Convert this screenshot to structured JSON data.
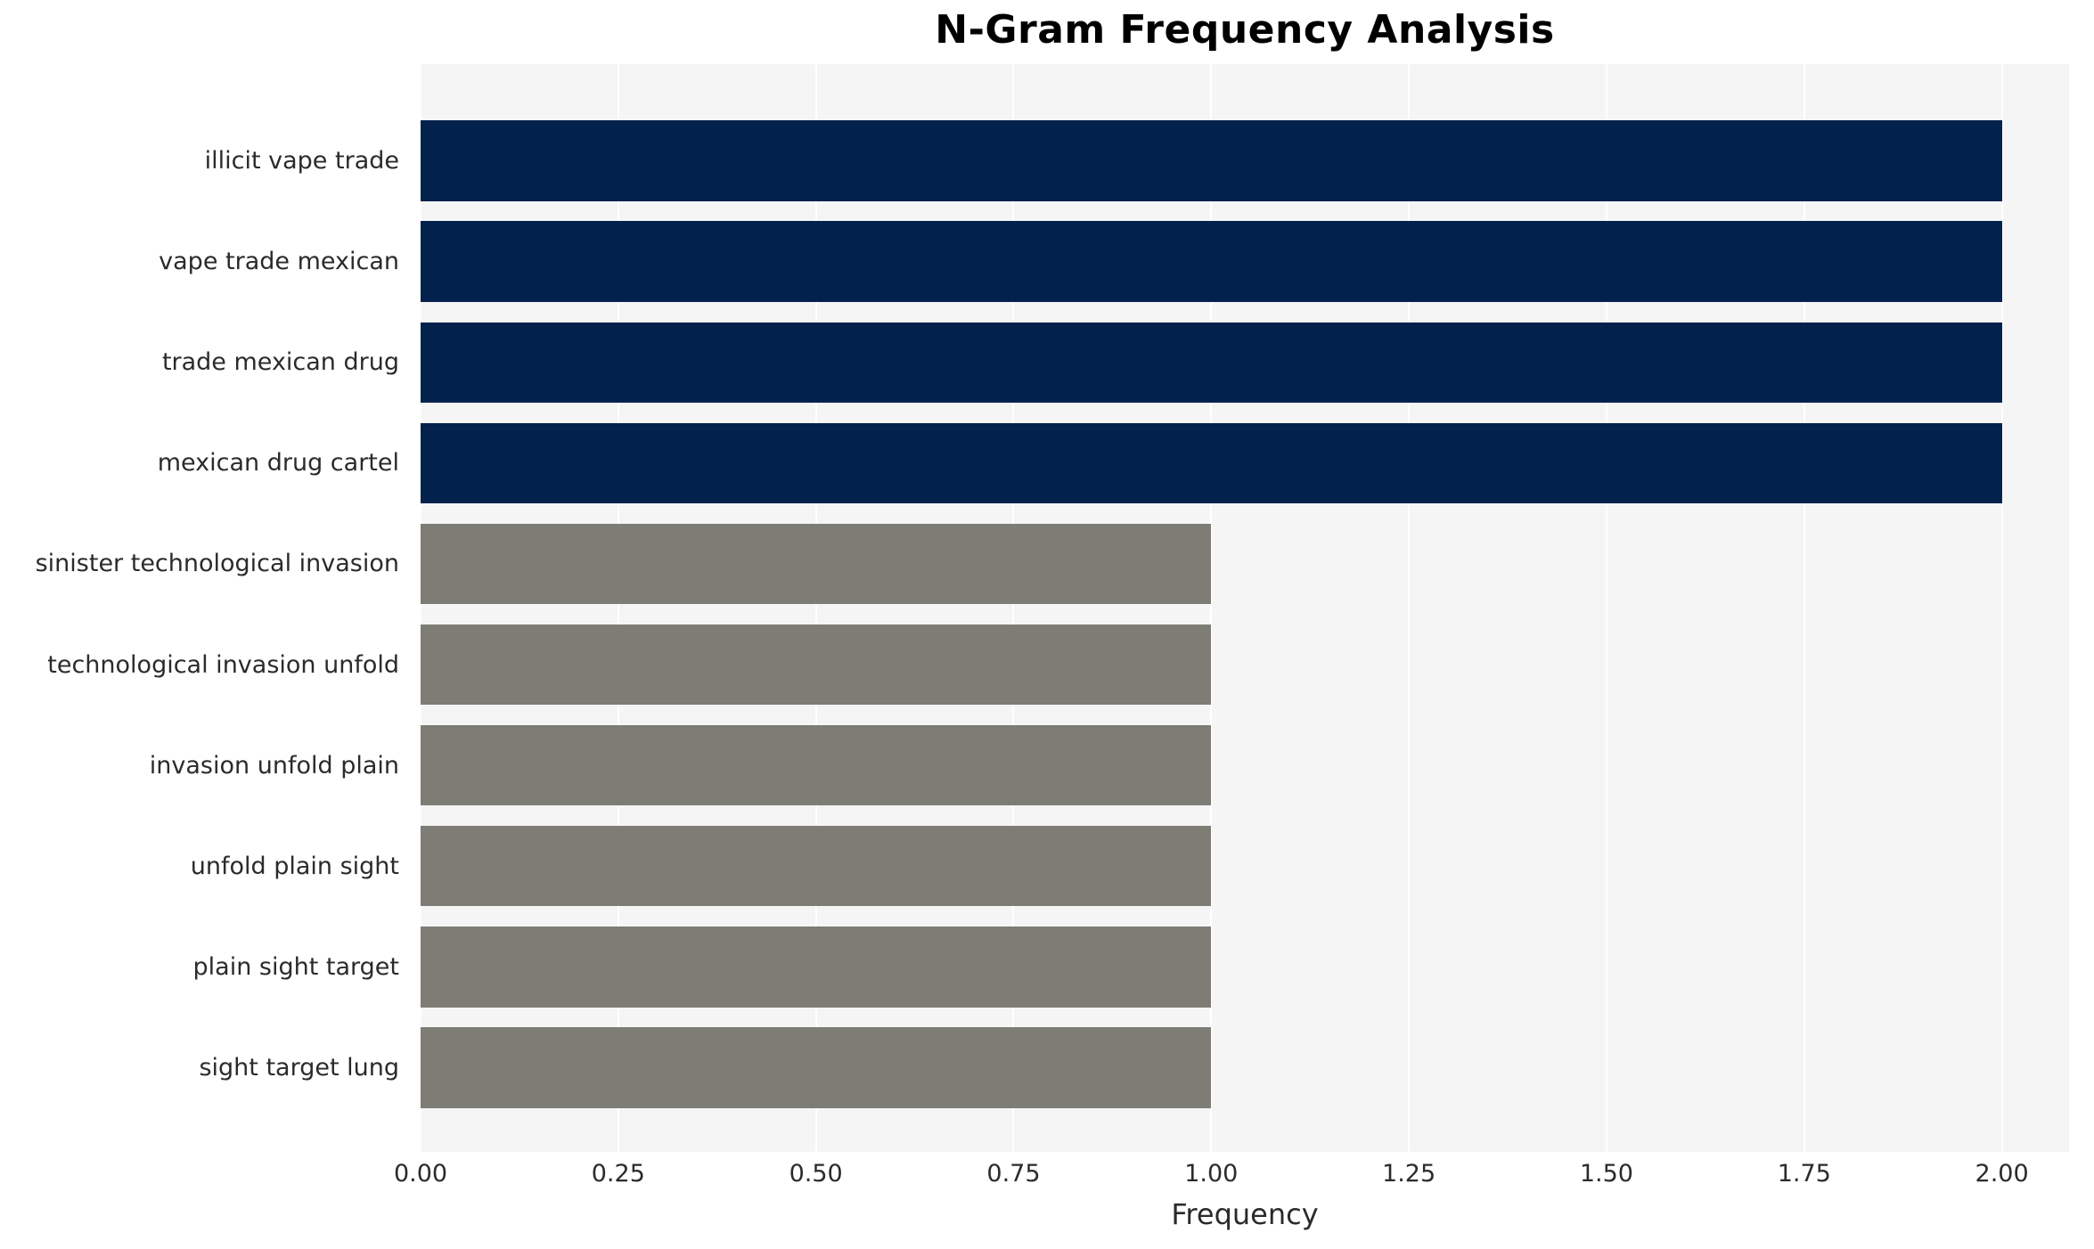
{
  "chart_data": {
    "type": "bar",
    "orientation": "horizontal",
    "title": "N-Gram Frequency Analysis",
    "xlabel": "Frequency",
    "ylabel": "",
    "categories": [
      "illicit vape trade",
      "vape trade mexican",
      "trade mexican drug",
      "mexican drug cartel",
      "sinister technological invasion",
      "technological invasion unfold",
      "invasion unfold plain",
      "unfold plain sight",
      "plain sight target",
      "sight target lung"
    ],
    "values": [
      2,
      2,
      2,
      2,
      1,
      1,
      1,
      1,
      1,
      1
    ],
    "bar_colors": [
      "#03214d",
      "#03214d",
      "#03214d",
      "#03214d",
      "#7d7c75",
      "#7d7c75",
      "#7d7c75",
      "#7d7c75",
      "#7d7c75",
      "#7d7c75"
    ],
    "xlim": [
      0,
      2.085
    ],
    "xticks": [
      0,
      0.25,
      0.5,
      0.75,
      1,
      1.25,
      1.5,
      1.75,
      2
    ],
    "xtick_labels": [
      "0.00",
      "0.25",
      "0.50",
      "0.75",
      "1.00",
      "1.25",
      "1.50",
      "1.75",
      "2.00"
    ],
    "grid": true,
    "grid_color": "#ffffff",
    "plot_background": "#f5f5f6",
    "legend_position": "none"
  }
}
